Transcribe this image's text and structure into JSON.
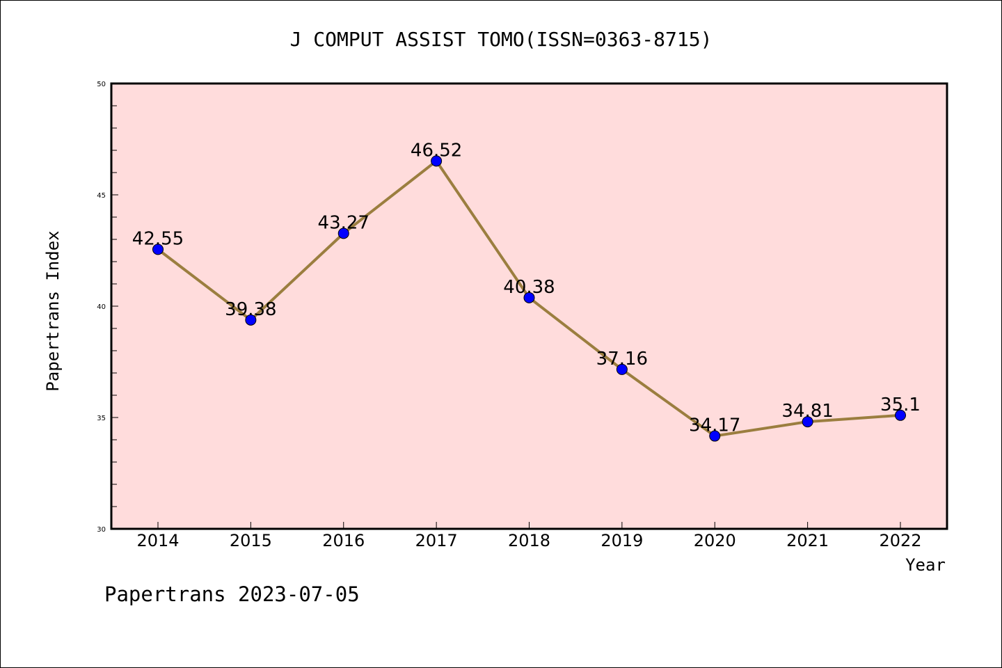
{
  "chart_data": {
    "type": "line",
    "title": "J COMPUT ASSIST TOMO(ISSN=0363-8715)",
    "xlabel": "Year",
    "ylabel": "Papertrans Index",
    "categories": [
      "2014",
      "2015",
      "2016",
      "2017",
      "2018",
      "2019",
      "2020",
      "2021",
      "2022"
    ],
    "values": [
      42.55,
      39.38,
      43.27,
      46.52,
      40.38,
      37.16,
      34.17,
      34.81,
      35.1
    ],
    "data_labels": [
      "42.55",
      "39.38",
      "43.27",
      "46.52",
      "40.38",
      "37.16",
      "34.17",
      "34.81",
      "35.1"
    ],
    "ylim": [
      30,
      50
    ],
    "yticks": [
      30,
      35,
      40,
      45,
      50
    ],
    "ytick_labels": [
      "30",
      "35",
      "40",
      "45",
      "50"
    ],
    "grid": false,
    "colors": {
      "plot_background": "#ffdcdc",
      "line": "#9b7e3f",
      "marker": "#0000ff"
    }
  },
  "footer": "Papertrans 2023-07-05"
}
